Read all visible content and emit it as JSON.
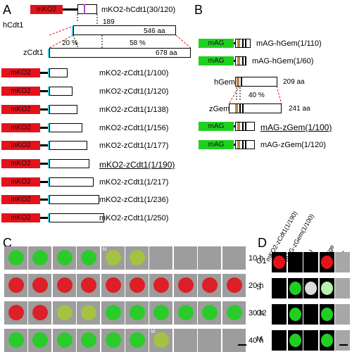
{
  "panels": {
    "a": "A",
    "b": "B",
    "c": "C",
    "d": "D"
  },
  "panel_a": {
    "top_construct_tag": "mKO2",
    "top_construct_label": "mKO2-hCdt1(30/120)",
    "hcdt1_label": "hCdt1",
    "hcdt1_len": "546 aa",
    "pos_189": "189",
    "zcdt1_label": "zCdt1",
    "zcdt1_len": "678 aa",
    "identity_left": "20 %",
    "identity_right": "58 %",
    "constructs": [
      {
        "tag": "mKO2",
        "label": "mKO2-zCdt1(1/100)",
        "underline": false
      },
      {
        "tag": "mKO2",
        "label": "mKO2-zCdt1(1/120)",
        "underline": false
      },
      {
        "tag": "mKO2",
        "label": "mKO2-zCdt1(1/138)",
        "underline": false
      },
      {
        "tag": "mKO2",
        "label": "mKO2-zCdt1(1/156)",
        "underline": false
      },
      {
        "tag": "mKO2",
        "label": "mKO2-zCdt1(1/177)",
        "underline": false
      },
      {
        "tag": "mKO2",
        "label": "mKO2-zCdt1(1/190)",
        "underline": true
      },
      {
        "tag": "mKO2",
        "label": "mKO2-zCdt1(1/217)",
        "underline": false
      },
      {
        "tag": "mKO2",
        "label": "mKO2-zCdt1(1/236)",
        "underline": false
      },
      {
        "tag": "mKO2",
        "label": "mKO2-zCdt1(1/250)",
        "underline": false
      }
    ]
  },
  "panel_b": {
    "constructs_top": [
      {
        "tag": "mAG",
        "label": "mAG-hGem(1/110)"
      },
      {
        "tag": "mAG",
        "label": "mAG-hGem(1/60)"
      }
    ],
    "hgem_label": "hGem",
    "hgem_len": "209 aa",
    "identity": "40 %",
    "zgem_label": "zGem",
    "zgem_len": "241 aa",
    "constructs_bottom": [
      {
        "tag": "mAG",
        "label": "mAG-zGem(1/100)",
        "underline": true
      },
      {
        "tag": "mAG",
        "label": "mAG-zGem(1/120)",
        "underline": false
      }
    ]
  },
  "panel_c": {
    "time_labels": [
      "10 h",
      "20 h",
      "30 h",
      "40 h"
    ],
    "marker_m": "M"
  },
  "panel_d": {
    "col_headers": [
      "mKO2-zCdt1(1/190)",
      "mAG-zGem(1/100)",
      "EdU",
      "Merge",
      "DIC"
    ],
    "phase_labels": [
      "G1",
      "S",
      "G2",
      "M"
    ]
  },
  "colors": {
    "mko2": "#e4121b",
    "mag": "#20d020",
    "cyan_domain": "#3cc7d6",
    "tan_domain": "#b08a4a"
  }
}
